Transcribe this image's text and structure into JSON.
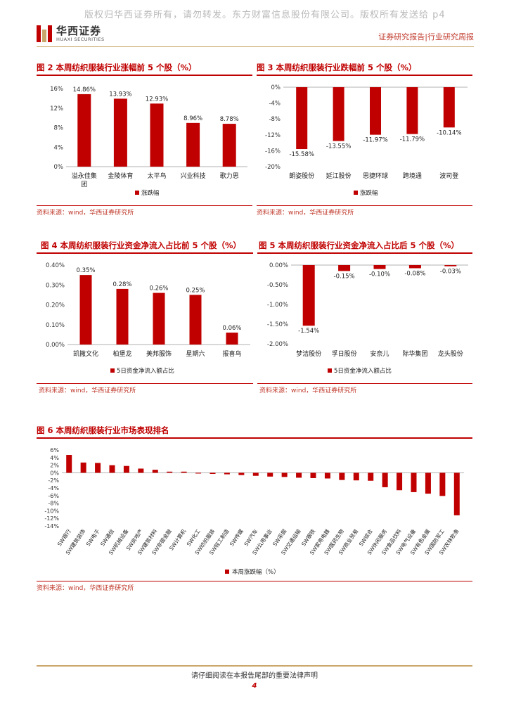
{
  "header": {
    "watermark": "版权归华西证券所有，请勿转发。东方财富信息股份有限公司。版权所有发送给 p4",
    "logo_cn": "华西证券",
    "logo_en": "HUAXI SECURITIES",
    "report_type": "证券研究报告|行业研究周报"
  },
  "source_text": "资料来源：wind，华西证券研究所",
  "footer": {
    "notice": "请仔细阅读在本报告尾部的重要法律声明",
    "page": "4"
  },
  "colors": {
    "accent": "#c00000",
    "gold": "#c9a66b"
  },
  "fig2": {
    "title": "图 2 本周纺织服装行业涨幅前 5 个股（%）",
    "chart_data": {
      "type": "bar",
      "categories": [
        "溢永佳集团",
        "金陵体育",
        "太平鸟",
        "兴业科技",
        "歌力思"
      ],
      "category_lines": [
        [
          "溢永佳集",
          "团"
        ],
        [
          "金陵体育"
        ],
        [
          "太平鸟"
        ],
        [
          "兴业科技"
        ],
        [
          "歌力思"
        ]
      ],
      "values": [
        14.86,
        13.93,
        12.93,
        8.96,
        8.78
      ],
      "labels": [
        "14.86%",
        "13.93%",
        "12.93%",
        "8.96%",
        "8.78%"
      ],
      "ylim": [
        0,
        16
      ],
      "ticks": [
        0,
        4,
        8,
        12,
        16
      ],
      "tick_labels": [
        "0%",
        "4%",
        "8%",
        "12%",
        "16%"
      ],
      "legend": "涨跌幅"
    }
  },
  "fig3": {
    "title": "图 3 本周纺织服装行业跌幅前 5 个股（%）",
    "chart_data": {
      "type": "bar",
      "categories": [
        "朗姿股份",
        "延江股份",
        "思捷环球",
        "跨境通",
        "波司登"
      ],
      "values": [
        -15.58,
        -13.55,
        -11.97,
        -11.79,
        -10.14
      ],
      "labels": [
        "-15.58%",
        "-13.55%",
        "-11.97%",
        "-11.79%",
        "-10.14%"
      ],
      "ylim": [
        -20,
        0
      ],
      "ticks": [
        0,
        -4,
        -8,
        -12,
        -16,
        -20
      ],
      "tick_labels": [
        "0%",
        "-4%",
        "-8%",
        "-12%",
        "-16%",
        "-20%"
      ],
      "legend": "涨跌幅"
    }
  },
  "fig4": {
    "title": "图 4 本周纺织服装行业资金净流入占比前 5 个股（%）",
    "chart_data": {
      "type": "bar",
      "categories": [
        "凯撒文化",
        "柏堡龙",
        "美邦服饰",
        "星期六",
        "报喜鸟"
      ],
      "values": [
        0.35,
        0.28,
        0.26,
        0.25,
        0.06
      ],
      "labels": [
        "0.35%",
        "0.28%",
        "0.26%",
        "0.25%",
        "0.06%"
      ],
      "ylim": [
        0,
        0.4
      ],
      "ticks": [
        0,
        0.1,
        0.2,
        0.3,
        0.4
      ],
      "tick_labels": [
        "0.00%",
        "0.10%",
        "0.20%",
        "0.30%",
        "0.40%"
      ],
      "legend": "5日资金净流入额占比"
    }
  },
  "fig5": {
    "title": "图 5 本周纺织服装行业资金净流入占比后 5 个股（%）",
    "chart_data": {
      "type": "bar",
      "categories": [
        "梦洁股份",
        "孚日股份",
        "安奈儿",
        "际华集团",
        "龙头股份"
      ],
      "values": [
        -1.54,
        -0.15,
        -0.1,
        -0.08,
        -0.03
      ],
      "labels": [
        "-1.54%",
        "-0.15%",
        "-0.10%",
        "-0.08%",
        "-0.03%"
      ],
      "ylim": [
        -2,
        0
      ],
      "ticks": [
        0,
        -0.5,
        -1,
        -1.5,
        -2
      ],
      "tick_labels": [
        "0.00%",
        "-0.50%",
        "-1.00%",
        "-1.50%",
        "-2.00%"
      ],
      "legend": "5日资金净流入额占比"
    }
  },
  "fig6": {
    "title": "图 6 本周纺织服装行业市场表现排名",
    "chart_data": {
      "type": "bar",
      "categories": [
        "SW银行",
        "SW建筑装饰",
        "SW电子",
        "SW通信",
        "SW机械设备",
        "SW房地产",
        "SW建筑材料",
        "SW非银金融",
        "SW计算机",
        "SW化工",
        "SW纺织服装",
        "SW轻工制造",
        "SW传媒",
        "SW汽车",
        "SW公用事业",
        "SW采掘",
        "SW交通运输",
        "SW钢铁",
        "SW家用电器",
        "SW医药生物",
        "SW商业贸易",
        "SW综合",
        "SW休闲服务",
        "SW食品饮料",
        "SW电气设备",
        "SW有色金属",
        "SW国防军工",
        "SW农林牧渔"
      ],
      "values": [
        4.7,
        2.7,
        2.6,
        2.0,
        1.8,
        1.1,
        0.8,
        0.3,
        0.3,
        -0.2,
        -0.3,
        -0.4,
        -0.6,
        -0.8,
        -1.0,
        -1.1,
        -1.3,
        -1.4,
        -1.5,
        -1.9,
        -2.0,
        -2.1,
        -3.8,
        -4.6,
        -5.1,
        -5.5,
        -6.1,
        -11.2
      ],
      "ylim": [
        -14,
        6
      ],
      "ticks": [
        6,
        4,
        2,
        0,
        -2,
        -4,
        -6,
        -8,
        -10,
        -12,
        -14
      ],
      "tick_labels": [
        "6%",
        "4%",
        "2%",
        "0%",
        "-2%",
        "-4%",
        "-6%",
        "-8%",
        "-10%",
        "-12%",
        "-14%"
      ],
      "legend": "本周涨跌幅（%）"
    }
  }
}
